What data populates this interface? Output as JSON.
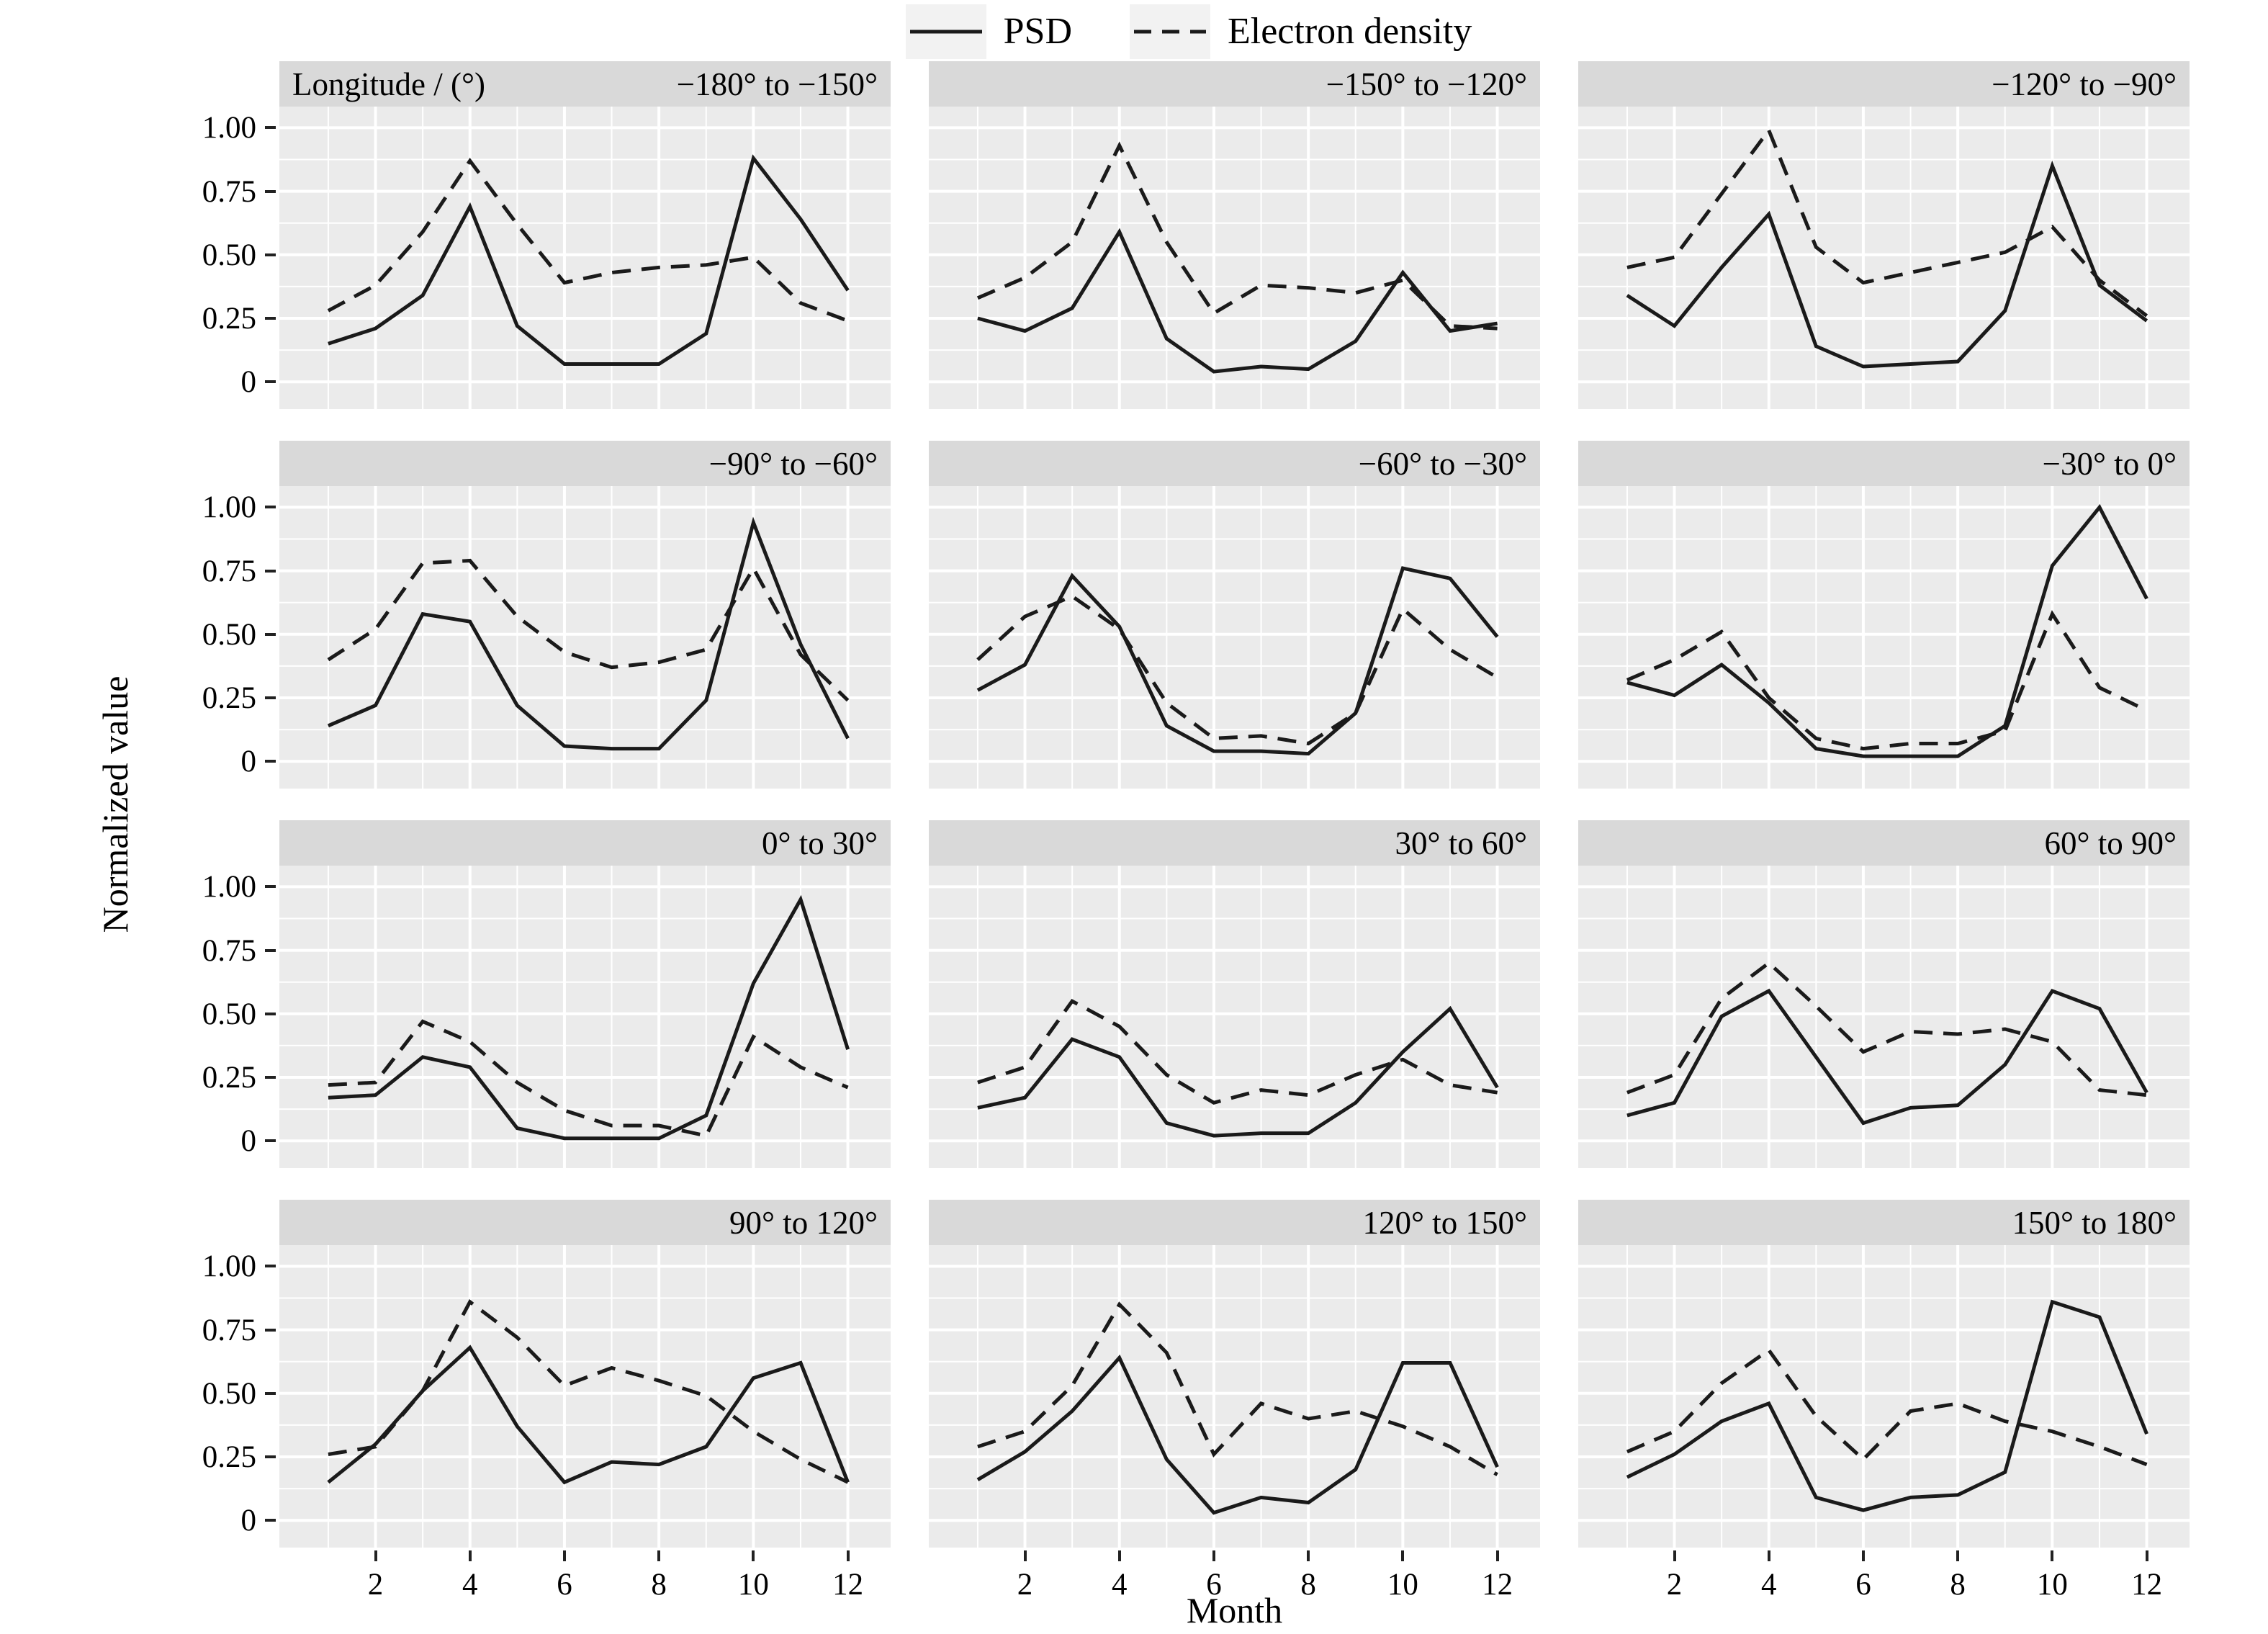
{
  "figure": {
    "legend": {
      "items": [
        {
          "label": "PSD",
          "line_style": "solid"
        },
        {
          "label": "Electron density",
          "line_style": "dashed"
        }
      ]
    },
    "y_axis": {
      "title": "Normalized value",
      "tick_labels": [
        "1.00",
        "0.75",
        "0.50",
        "0.25",
        "0"
      ],
      "tick_values": [
        1.0,
        0.75,
        0.5,
        0.25,
        0
      ]
    },
    "x_axis": {
      "title": "Month",
      "tick_labels": [
        "2",
        "4",
        "6",
        "8",
        "10",
        "12"
      ],
      "tick_values": [
        2,
        4,
        6,
        8,
        10,
        12
      ]
    },
    "facet_header_label": "Longitude / (°)",
    "colors": {
      "panel_bg": "#ebebeb",
      "strip_bg": "#d9d9d9",
      "grid": "#ffffff",
      "line": "#1a1a1a",
      "legend_key_bg": "#f2f2f2",
      "text": "#000000"
    }
  },
  "chart_data": {
    "type": "line",
    "x": [
      1,
      2,
      3,
      4,
      5,
      6,
      7,
      8,
      9,
      10,
      11,
      12
    ],
    "xlabel": "Month",
    "ylabel": "Normalized value",
    "ylim": [
      0,
      1
    ],
    "xlim": [
      1,
      12
    ],
    "grid": "on",
    "legend_position": "top",
    "facet_variable": "Longitude / (°)",
    "facets": [
      {
        "label": "−180° to −150°",
        "series": [
          {
            "name": "PSD",
            "values": [
              0.15,
              0.21,
              0.34,
              0.69,
              0.22,
              0.07,
              0.07,
              0.07,
              0.19,
              0.88,
              0.64,
              0.36
            ]
          },
          {
            "name": "Electron density",
            "values": [
              0.28,
              0.38,
              0.59,
              0.87,
              0.62,
              0.39,
              0.43,
              0.45,
              0.46,
              0.49,
              0.31,
              0.24
            ]
          }
        ]
      },
      {
        "label": "−150° to −120°",
        "series": [
          {
            "name": "PSD",
            "values": [
              0.25,
              0.2,
              0.29,
              0.59,
              0.17,
              0.04,
              0.06,
              0.05,
              0.16,
              0.43,
              0.2,
              0.23
            ]
          },
          {
            "name": "Electron density",
            "values": [
              0.33,
              0.41,
              0.55,
              0.93,
              0.55,
              0.27,
              0.38,
              0.37,
              0.35,
              0.4,
              0.22,
              0.21
            ]
          }
        ]
      },
      {
        "label": "−120° to −90°",
        "series": [
          {
            "name": "PSD",
            "values": [
              0.34,
              0.22,
              0.45,
              0.66,
              0.14,
              0.06,
              0.07,
              0.08,
              0.28,
              0.85,
              0.38,
              0.24
            ]
          },
          {
            "name": "Electron density",
            "values": [
              0.45,
              0.49,
              0.74,
              0.99,
              0.53,
              0.39,
              0.43,
              0.47,
              0.51,
              0.61,
              0.4,
              0.26
            ]
          }
        ]
      },
      {
        "label": "−90° to −60°",
        "series": [
          {
            "name": "PSD",
            "values": [
              0.14,
              0.22,
              0.58,
              0.55,
              0.22,
              0.06,
              0.05,
              0.05,
              0.24,
              0.94,
              0.46,
              0.09
            ]
          },
          {
            "name": "Electron density",
            "values": [
              0.4,
              0.52,
              0.78,
              0.79,
              0.57,
              0.43,
              0.37,
              0.39,
              0.44,
              0.76,
              0.42,
              0.24
            ]
          }
        ]
      },
      {
        "label": "−60° to −30°",
        "series": [
          {
            "name": "PSD",
            "values": [
              0.28,
              0.38,
              0.73,
              0.53,
              0.14,
              0.04,
              0.04,
              0.03,
              0.19,
              0.76,
              0.72,
              0.49
            ]
          },
          {
            "name": "Electron density",
            "values": [
              0.4,
              0.57,
              0.65,
              0.52,
              0.23,
              0.09,
              0.1,
              0.07,
              0.19,
              0.6,
              0.44,
              0.33
            ]
          }
        ]
      },
      {
        "label": "−30° to 0°",
        "series": [
          {
            "name": "PSD",
            "values": [
              0.31,
              0.26,
              0.38,
              0.23,
              0.05,
              0.02,
              0.02,
              0.02,
              0.14,
              0.77,
              1.0,
              0.64
            ]
          },
          {
            "name": "Electron density",
            "values": [
              0.32,
              0.4,
              0.51,
              0.25,
              0.09,
              0.05,
              0.07,
              0.07,
              0.12,
              0.58,
              0.29,
              0.2
            ]
          }
        ]
      },
      {
        "label": "0° to 30°",
        "series": [
          {
            "name": "PSD",
            "values": [
              0.17,
              0.18,
              0.33,
              0.29,
              0.05,
              0.01,
              0.01,
              0.01,
              0.1,
              0.62,
              0.95,
              0.36
            ]
          },
          {
            "name": "Electron density",
            "values": [
              0.22,
              0.23,
              0.47,
              0.39,
              0.23,
              0.12,
              0.06,
              0.06,
              0.02,
              0.41,
              0.29,
              0.21
            ]
          }
        ]
      },
      {
        "label": "30° to 60°",
        "series": [
          {
            "name": "PSD",
            "values": [
              0.13,
              0.17,
              0.4,
              0.33,
              0.07,
              0.02,
              0.03,
              0.03,
              0.15,
              0.35,
              0.52,
              0.21
            ]
          },
          {
            "name": "Electron density",
            "values": [
              0.23,
              0.29,
              0.55,
              0.45,
              0.26,
              0.15,
              0.2,
              0.18,
              0.26,
              0.32,
              0.22,
              0.19
            ]
          }
        ]
      },
      {
        "label": "60° to 90°",
        "series": [
          {
            "name": "PSD",
            "values": [
              0.1,
              0.15,
              0.49,
              0.59,
              0.33,
              0.07,
              0.13,
              0.14,
              0.3,
              0.59,
              0.52,
              0.19
            ]
          },
          {
            "name": "Electron density",
            "values": [
              0.19,
              0.26,
              0.56,
              0.7,
              0.53,
              0.35,
              0.43,
              0.42,
              0.44,
              0.39,
              0.2,
              0.18
            ]
          }
        ]
      },
      {
        "label": "90° to 120°",
        "series": [
          {
            "name": "PSD",
            "values": [
              0.15,
              0.3,
              0.51,
              0.68,
              0.37,
              0.15,
              0.23,
              0.22,
              0.29,
              0.56,
              0.62,
              0.15
            ]
          },
          {
            "name": "Electron density",
            "values": [
              0.26,
              0.29,
              0.51,
              0.86,
              0.72,
              0.53,
              0.6,
              0.55,
              0.49,
              0.35,
              0.24,
              0.15
            ]
          }
        ]
      },
      {
        "label": "120° to 150°",
        "series": [
          {
            "name": "PSD",
            "values": [
              0.16,
              0.27,
              0.43,
              0.64,
              0.24,
              0.03,
              0.09,
              0.07,
              0.2,
              0.62,
              0.62,
              0.21
            ]
          },
          {
            "name": "Electron density",
            "values": [
              0.29,
              0.35,
              0.53,
              0.85,
              0.66,
              0.26,
              0.46,
              0.4,
              0.43,
              0.37,
              0.29,
              0.18
            ]
          }
        ]
      },
      {
        "label": "150° to 180°",
        "series": [
          {
            "name": "PSD",
            "values": [
              0.17,
              0.26,
              0.39,
              0.46,
              0.09,
              0.04,
              0.09,
              0.1,
              0.19,
              0.86,
              0.8,
              0.34
            ]
          },
          {
            "name": "Electron density",
            "values": [
              0.27,
              0.35,
              0.54,
              0.67,
              0.41,
              0.24,
              0.43,
              0.46,
              0.39,
              0.35,
              0.29,
              0.22
            ]
          }
        ]
      }
    ]
  }
}
